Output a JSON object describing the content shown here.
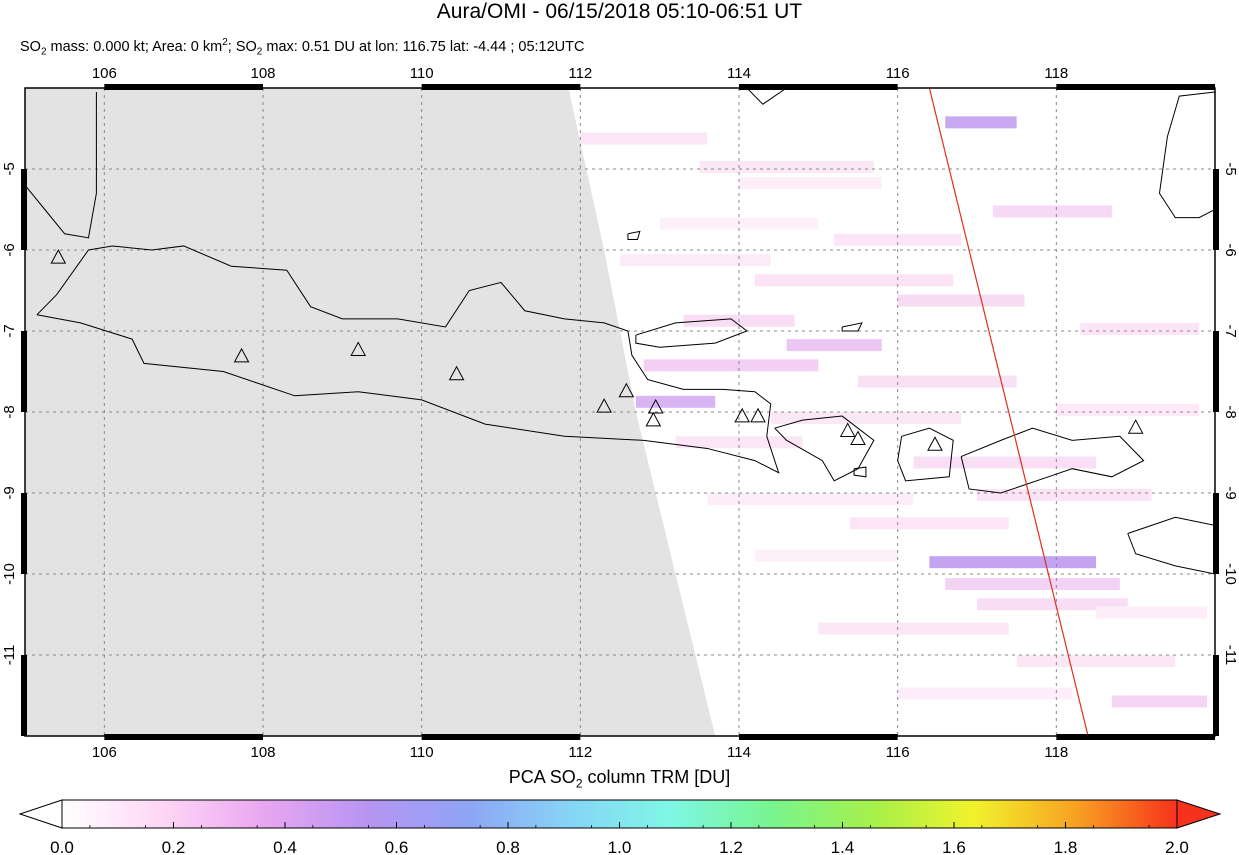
{
  "title": "Aura/OMI - 06/15/2018 05:10-06:51 UT",
  "subtitle": {
    "so2_label": "SO",
    "so2_sub": "2",
    "mass_text": " mass: 0.000 kt; Area: 0 km",
    "area_sup": "2",
    "sep_text": "; SO",
    "max_sub": "2",
    "max_text": " max: 0.51 DU at lon: 116.75 lat: -4.44 ; 05:12UTC"
  },
  "map": {
    "lon_range": [
      105.0,
      120.0
    ],
    "lat_range": [
      -12.0,
      -4.0
    ],
    "lon_ticks": [
      "106",
      "108",
      "110",
      "112",
      "114",
      "116",
      "118"
    ],
    "lat_ticks": [
      "-5",
      "-6",
      "-7",
      "-8",
      "-9",
      "-10",
      "-11"
    ],
    "no_data_color": "#e3e3e3",
    "coastline_color": "#000000",
    "orbit_track_color": "#e0301e",
    "orbit_track": [
      [
        116.4,
        -4.0
      ],
      [
        118.4,
        -12.0
      ]
    ],
    "volcano_icon": "triangle-outline-icon",
    "volcanoes": [
      [
        105.42,
        -6.1
      ],
      [
        107.73,
        -7.32
      ],
      [
        109.2,
        -7.24
      ],
      [
        110.44,
        -7.54
      ],
      [
        112.3,
        -7.94
      ],
      [
        112.58,
        -7.75
      ],
      [
        112.95,
        -7.95
      ],
      [
        112.92,
        -8.11
      ],
      [
        114.04,
        -8.06
      ],
      [
        114.24,
        -8.06
      ],
      [
        115.37,
        -8.24
      ],
      [
        115.5,
        -8.34
      ],
      [
        116.47,
        -8.41
      ],
      [
        119.0,
        -8.2
      ]
    ]
  },
  "colorbar": {
    "label_main": "PCA SO",
    "label_sub": "2",
    "label_rest": " column TRM [DU]",
    "min": 0.0,
    "max": 2.0,
    "tick_labels": [
      "0.0",
      "0.2",
      "0.4",
      "0.6",
      "0.8",
      "1.0",
      "1.2",
      "1.4",
      "1.6",
      "1.8",
      "2.0"
    ],
    "colors": [
      "#ffffff",
      "#ffd6f5",
      "#e9a6f0",
      "#b795f2",
      "#8fa4f5",
      "#87d4f6",
      "#7ff7e6",
      "#78f58f",
      "#a6f04b",
      "#f1f22c",
      "#f7a222",
      "#f7321c"
    ]
  }
}
